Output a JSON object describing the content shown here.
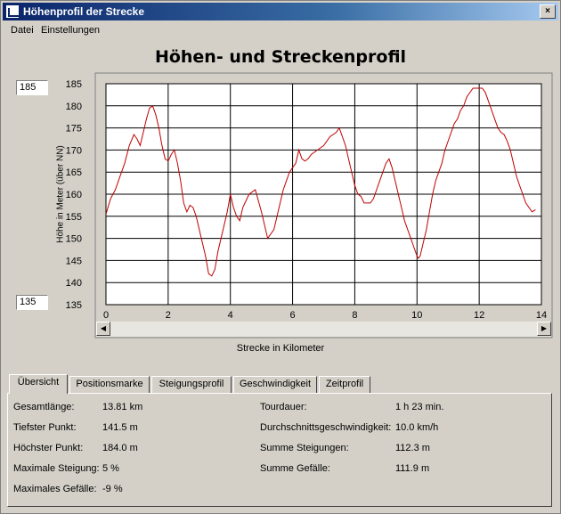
{
  "window": {
    "title": "Höhenprofil der Strecke",
    "close_glyph": "×"
  },
  "menu": {
    "items": [
      "Datei",
      "Einstellungen"
    ]
  },
  "controls": {
    "y_max_value": "185",
    "y_min_value": "135"
  },
  "chart_data": {
    "type": "line",
    "title": "Höhen- und Streckenprofil",
    "xlabel": "Strecke in Kilometer",
    "ylabel": "Höhe in Meter (über NN)",
    "xlim": [
      0,
      14
    ],
    "ylim": [
      135,
      185
    ],
    "x_ticks": [
      "0",
      "2",
      "4",
      "6",
      "8",
      "10",
      "12",
      "14"
    ],
    "y_ticks": [
      "185",
      "180",
      "175",
      "170",
      "165",
      "160",
      "155",
      "150",
      "145",
      "140",
      "135"
    ],
    "grid": true,
    "color": "#c00000",
    "series": [
      {
        "x": [
          0.0,
          0.15,
          0.3,
          0.45,
          0.6,
          0.75,
          0.9,
          1.0,
          1.1,
          1.2,
          1.3,
          1.4,
          1.5,
          1.6,
          1.7,
          1.8,
          1.9,
          2.0,
          2.1,
          2.2,
          2.3,
          2.4,
          2.5,
          2.6,
          2.7,
          2.8,
          2.9,
          3.0,
          3.1,
          3.2,
          3.3,
          3.4,
          3.5,
          3.6,
          3.7,
          3.8,
          3.9,
          4.0,
          4.1,
          4.2,
          4.3,
          4.4,
          4.6,
          4.8,
          5.0,
          5.2,
          5.4,
          5.5,
          5.6,
          5.7,
          5.8,
          5.9,
          6.0,
          6.1,
          6.2,
          6.3,
          6.4,
          6.5,
          6.6,
          6.8,
          7.0,
          7.2,
          7.4,
          7.5,
          7.6,
          7.7,
          7.8,
          7.9,
          8.0,
          8.1,
          8.2,
          8.3,
          8.4,
          8.5,
          8.6,
          8.7,
          8.8,
          8.9,
          9.0,
          9.1,
          9.2,
          9.3,
          9.4,
          9.5,
          9.6,
          9.7,
          9.8,
          9.9,
          10.0,
          10.05,
          10.1,
          10.2,
          10.3,
          10.4,
          10.5,
          10.6,
          10.7,
          10.8,
          10.9,
          11.0,
          11.1,
          11.2,
          11.3,
          11.4,
          11.5,
          11.6,
          11.7,
          11.8,
          11.9,
          12.0,
          12.1,
          12.2,
          12.3,
          12.4,
          12.5,
          12.6,
          12.7,
          12.8,
          12.9,
          13.0,
          13.1,
          13.2,
          13.3,
          13.4,
          13.5,
          13.6,
          13.7,
          13.81
        ],
        "values": [
          155.5,
          159,
          161,
          164,
          167,
          171,
          173.5,
          172.5,
          171,
          174,
          177,
          179.5,
          180,
          178,
          175,
          171,
          168,
          167.5,
          169,
          170,
          167,
          163,
          158,
          156,
          157.5,
          157,
          155,
          152,
          149,
          146,
          142,
          141.5,
          143,
          147,
          150,
          153,
          156,
          160,
          157,
          155,
          154,
          157,
          160,
          161,
          156,
          150,
          152,
          155,
          158,
          161,
          163,
          165,
          166,
          167,
          170,
          168,
          167.5,
          168,
          169,
          170,
          171,
          173,
          174,
          175,
          173,
          171,
          168,
          165,
          162,
          160,
          159.5,
          158,
          158,
          158,
          159,
          161,
          163,
          165,
          167,
          168,
          166,
          163,
          160,
          157,
          154,
          152,
          150,
          148,
          146,
          145.5,
          146,
          149,
          152,
          156,
          160,
          163,
          165,
          167,
          170,
          172,
          174,
          176,
          177,
          179,
          180,
          182,
          183,
          184,
          184,
          184,
          184,
          183,
          181,
          179,
          177,
          175,
          174,
          173.5,
          172,
          170,
          167,
          164,
          162,
          160,
          158,
          157,
          156,
          156.5
        ]
      }
    ]
  },
  "tabs": [
    "Übersicht",
    "Positionsmarke",
    "Steigungsprofil",
    "Geschwindigkeit",
    "Zeitprofil"
  ],
  "summary": {
    "left": [
      {
        "label": "Gesamtlänge:",
        "value": "13.81 km"
      },
      {
        "label": "Tiefster Punkt:",
        "value": "141.5 m"
      },
      {
        "label": "Höchster Punkt:",
        "value": "184.0 m"
      },
      {
        "label": "Maximale Steigung:",
        "value": "5 %"
      },
      {
        "label": "Maximales Gefälle:",
        "value": "-9 %"
      }
    ],
    "right": [
      {
        "label": "Tourdauer:",
        "value": "1 h 23 min."
      },
      {
        "label": "Durchschnittsgeschwindigkeit:",
        "value": "10.0 km/h"
      },
      {
        "label": "Summe Steigungen:",
        "value": "112.3 m"
      },
      {
        "label": "Summe Gefälle:",
        "value": "111.9 m"
      }
    ]
  }
}
